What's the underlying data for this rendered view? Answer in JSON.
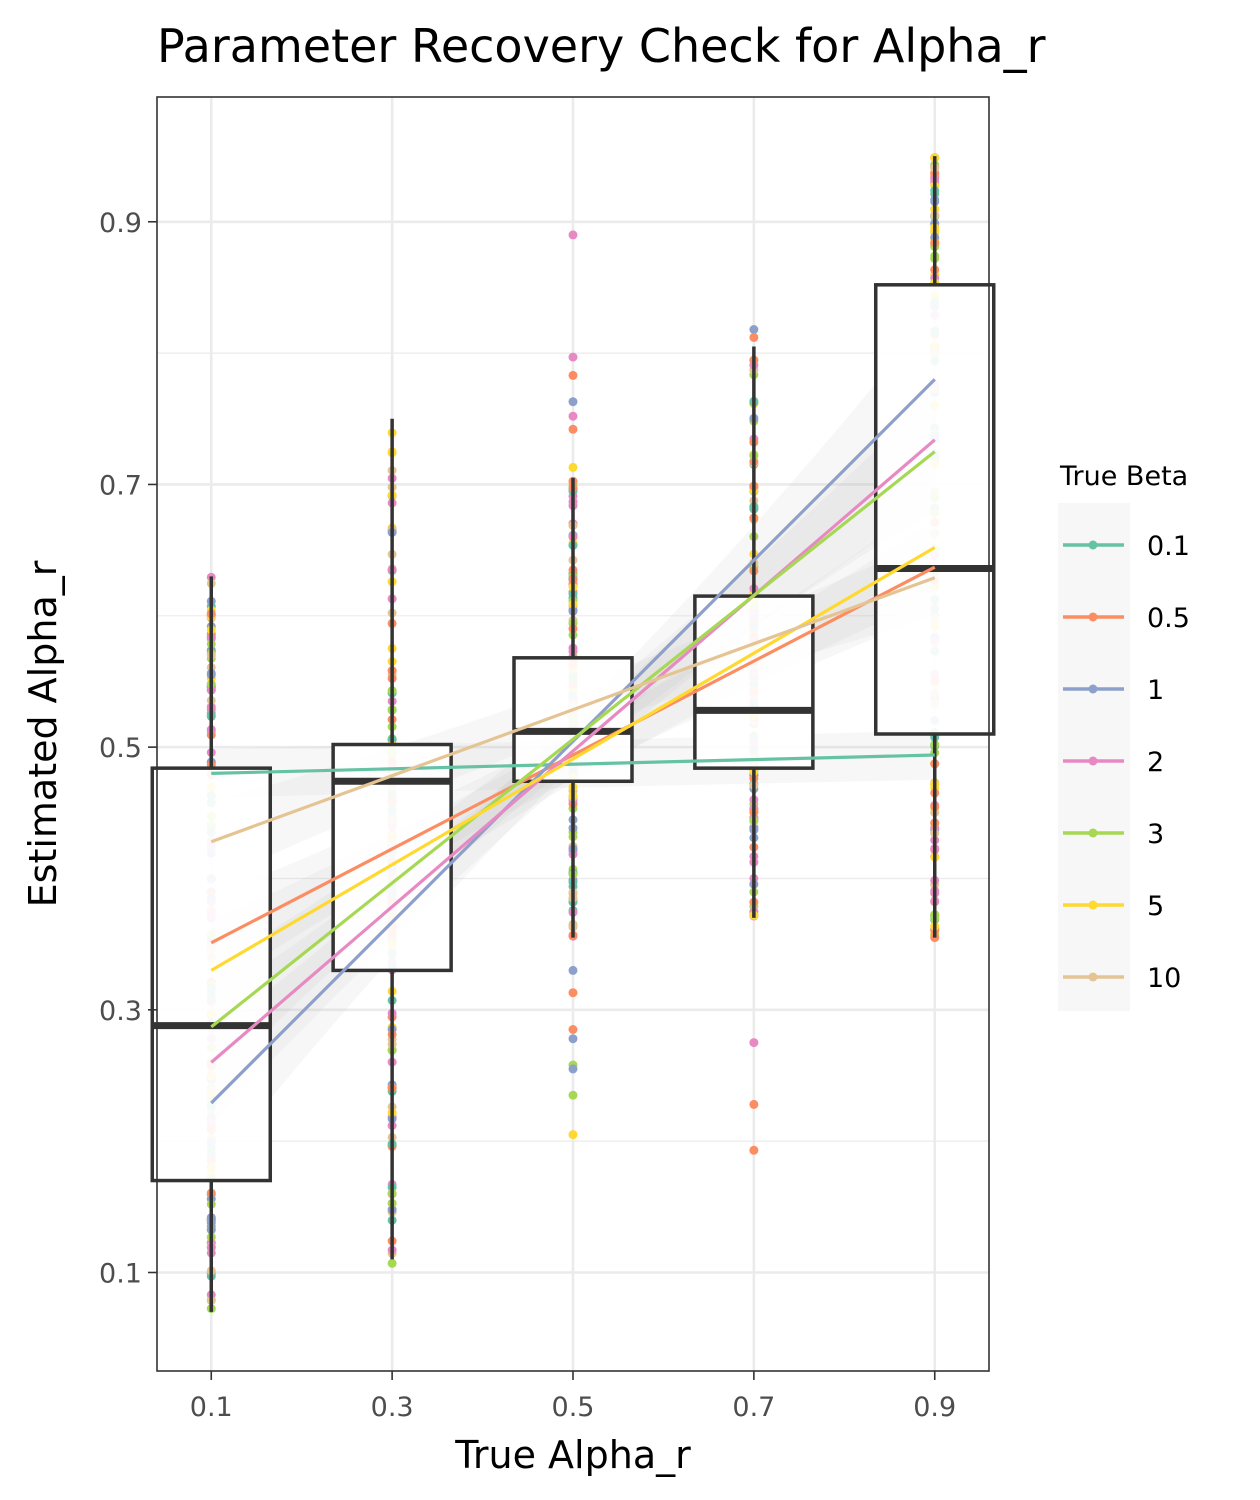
{
  "chart_data": {
    "type": "boxplot",
    "title": "Parameter Recovery Check for Alpha_r",
    "xlabel": "True Alpha_r",
    "ylabel": "Estimated Alpha_r",
    "xlim": [
      0.04,
      0.96
    ],
    "ylim": [
      0.025,
      0.995
    ],
    "x_ticks": [
      "0.1",
      "0.3",
      "0.5",
      "0.7",
      "0.9"
    ],
    "y_ticks": [
      "0.1",
      "0.3",
      "0.5",
      "0.7",
      "0.9"
    ],
    "grid": true,
    "legend": {
      "title": "True Beta",
      "position": "right",
      "entries": [
        {
          "label": "0.1",
          "color": "#66c2a5"
        },
        {
          "label": "0.5",
          "color": "#fc8d62"
        },
        {
          "label": "1",
          "color": "#8da0cb"
        },
        {
          "label": "2",
          "color": "#e78ac3"
        },
        {
          "label": "3",
          "color": "#a6d854"
        },
        {
          "label": "5",
          "color": "#ffd92f"
        },
        {
          "label": "10",
          "color": "#e5c494"
        }
      ]
    },
    "boxes": [
      {
        "x": 0.1,
        "q1": 0.17,
        "median": 0.288,
        "q3": 0.484,
        "whisker_low": 0.07,
        "whisker_high": 0.63
      },
      {
        "x": 0.3,
        "q1": 0.33,
        "median": 0.474,
        "q3": 0.502,
        "whisker_low": 0.11,
        "whisker_high": 0.75
      },
      {
        "x": 0.5,
        "q1": 0.474,
        "median": 0.512,
        "q3": 0.568,
        "whisker_low": 0.355,
        "whisker_high": 0.705
      },
      {
        "x": 0.7,
        "q1": 0.484,
        "median": 0.528,
        "q3": 0.615,
        "whisker_low": 0.37,
        "whisker_high": 0.805
      },
      {
        "x": 0.9,
        "q1": 0.51,
        "median": 0.636,
        "q3": 0.852,
        "whisker_low": 0.355,
        "whisker_high": 0.95
      }
    ],
    "regression_lines": [
      {
        "beta": "0.1",
        "x": [
          0.1,
          0.9
        ],
        "y": [
          0.48,
          0.494
        ]
      },
      {
        "beta": "0.5",
        "x": [
          0.1,
          0.9
        ],
        "y": [
          0.351,
          0.637
        ]
      },
      {
        "beta": "1",
        "x": [
          0.1,
          0.9
        ],
        "y": [
          0.229,
          0.78
        ]
      },
      {
        "beta": "2",
        "x": [
          0.1,
          0.9
        ],
        "y": [
          0.26,
          0.734
        ]
      },
      {
        "beta": "3",
        "x": [
          0.1,
          0.9
        ],
        "y": [
          0.287,
          0.725
        ]
      },
      {
        "beta": "5",
        "x": [
          0.1,
          0.9
        ],
        "y": [
          0.33,
          0.652
        ]
      },
      {
        "beta": "10",
        "x": [
          0.1,
          0.9
        ],
        "y": [
          0.428,
          0.629
        ]
      }
    ],
    "outliers": [
      {
        "x": 0.5,
        "y": 0.89,
        "beta": "2"
      },
      {
        "x": 0.5,
        "y": 0.797,
        "beta": "2"
      },
      {
        "x": 0.5,
        "y": 0.783,
        "beta": "0.5"
      },
      {
        "x": 0.5,
        "y": 0.763,
        "beta": "1"
      },
      {
        "x": 0.5,
        "y": 0.752,
        "beta": "2"
      },
      {
        "x": 0.5,
        "y": 0.742,
        "beta": "0.5"
      },
      {
        "x": 0.5,
        "y": 0.713,
        "beta": "5"
      },
      {
        "x": 0.5,
        "y": 0.33,
        "beta": "1"
      },
      {
        "x": 0.5,
        "y": 0.313,
        "beta": "0.5"
      },
      {
        "x": 0.5,
        "y": 0.285,
        "beta": "0.5"
      },
      {
        "x": 0.5,
        "y": 0.278,
        "beta": "1"
      },
      {
        "x": 0.5,
        "y": 0.258,
        "beta": "3"
      },
      {
        "x": 0.5,
        "y": 0.255,
        "beta": "1"
      },
      {
        "x": 0.5,
        "y": 0.235,
        "beta": "3"
      },
      {
        "x": 0.5,
        "y": 0.205,
        "beta": "5"
      },
      {
        "x": 0.7,
        "y": 0.818,
        "beta": "1"
      },
      {
        "x": 0.7,
        "y": 0.812,
        "beta": "0.5"
      },
      {
        "x": 0.7,
        "y": 0.275,
        "beta": "2"
      },
      {
        "x": 0.7,
        "y": 0.228,
        "beta": "0.5"
      },
      {
        "x": 0.7,
        "y": 0.193,
        "beta": "0.5"
      },
      {
        "x": 0.3,
        "y": 0.107,
        "beta": "3"
      },
      {
        "x": 0.9,
        "y": 0.355,
        "beta": "0.5"
      }
    ]
  }
}
